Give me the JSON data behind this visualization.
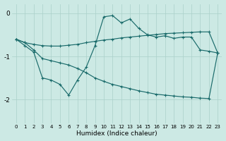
{
  "x": [
    0,
    1,
    2,
    3,
    4,
    5,
    6,
    7,
    8,
    9,
    10,
    11,
    12,
    13,
    14,
    15,
    16,
    17,
    18,
    19,
    20,
    21,
    22,
    23
  ],
  "line_wavy": [
    -0.6,
    -0.75,
    -0.9,
    -1.5,
    -1.55,
    -1.65,
    -1.9,
    -1.55,
    -1.25,
    -0.75,
    -0.08,
    -0.05,
    -0.22,
    -0.13,
    -0.35,
    -0.5,
    -0.55,
    -0.52,
    -0.58,
    -0.55,
    -0.55,
    -0.85,
    -0.88,
    -0.92
  ],
  "line_upper": [
    -0.6,
    -0.68,
    -0.72,
    -0.75,
    -0.76,
    -0.76,
    -0.74,
    -0.72,
    -0.68,
    -0.65,
    -0.62,
    -0.6,
    -0.57,
    -0.55,
    -0.53,
    -0.51,
    -0.49,
    -0.47,
    -0.46,
    -0.45,
    -0.44,
    -0.43,
    -0.43,
    -0.92
  ],
  "line_lower": [
    -0.6,
    -0.68,
    -0.85,
    -1.05,
    -1.1,
    -1.15,
    -1.2,
    -1.28,
    -1.38,
    -1.5,
    -1.58,
    -1.65,
    -1.7,
    -1.75,
    -1.8,
    -1.84,
    -1.88,
    -1.9,
    -1.92,
    -1.94,
    -1.95,
    -1.97,
    -1.98,
    -0.92
  ],
  "bg_color": "#cce9e4",
  "line_color": "#1a6b6b",
  "grid_color": "#aad0ca",
  "xlabel": "Humidex (Indice chaleur)",
  "yticks": [
    0,
    -1,
    -2
  ],
  "ylim": [
    -2.55,
    0.22
  ],
  "xlim": [
    -0.5,
    23.5
  ],
  "figsize": [
    3.2,
    2.0
  ],
  "dpi": 100
}
